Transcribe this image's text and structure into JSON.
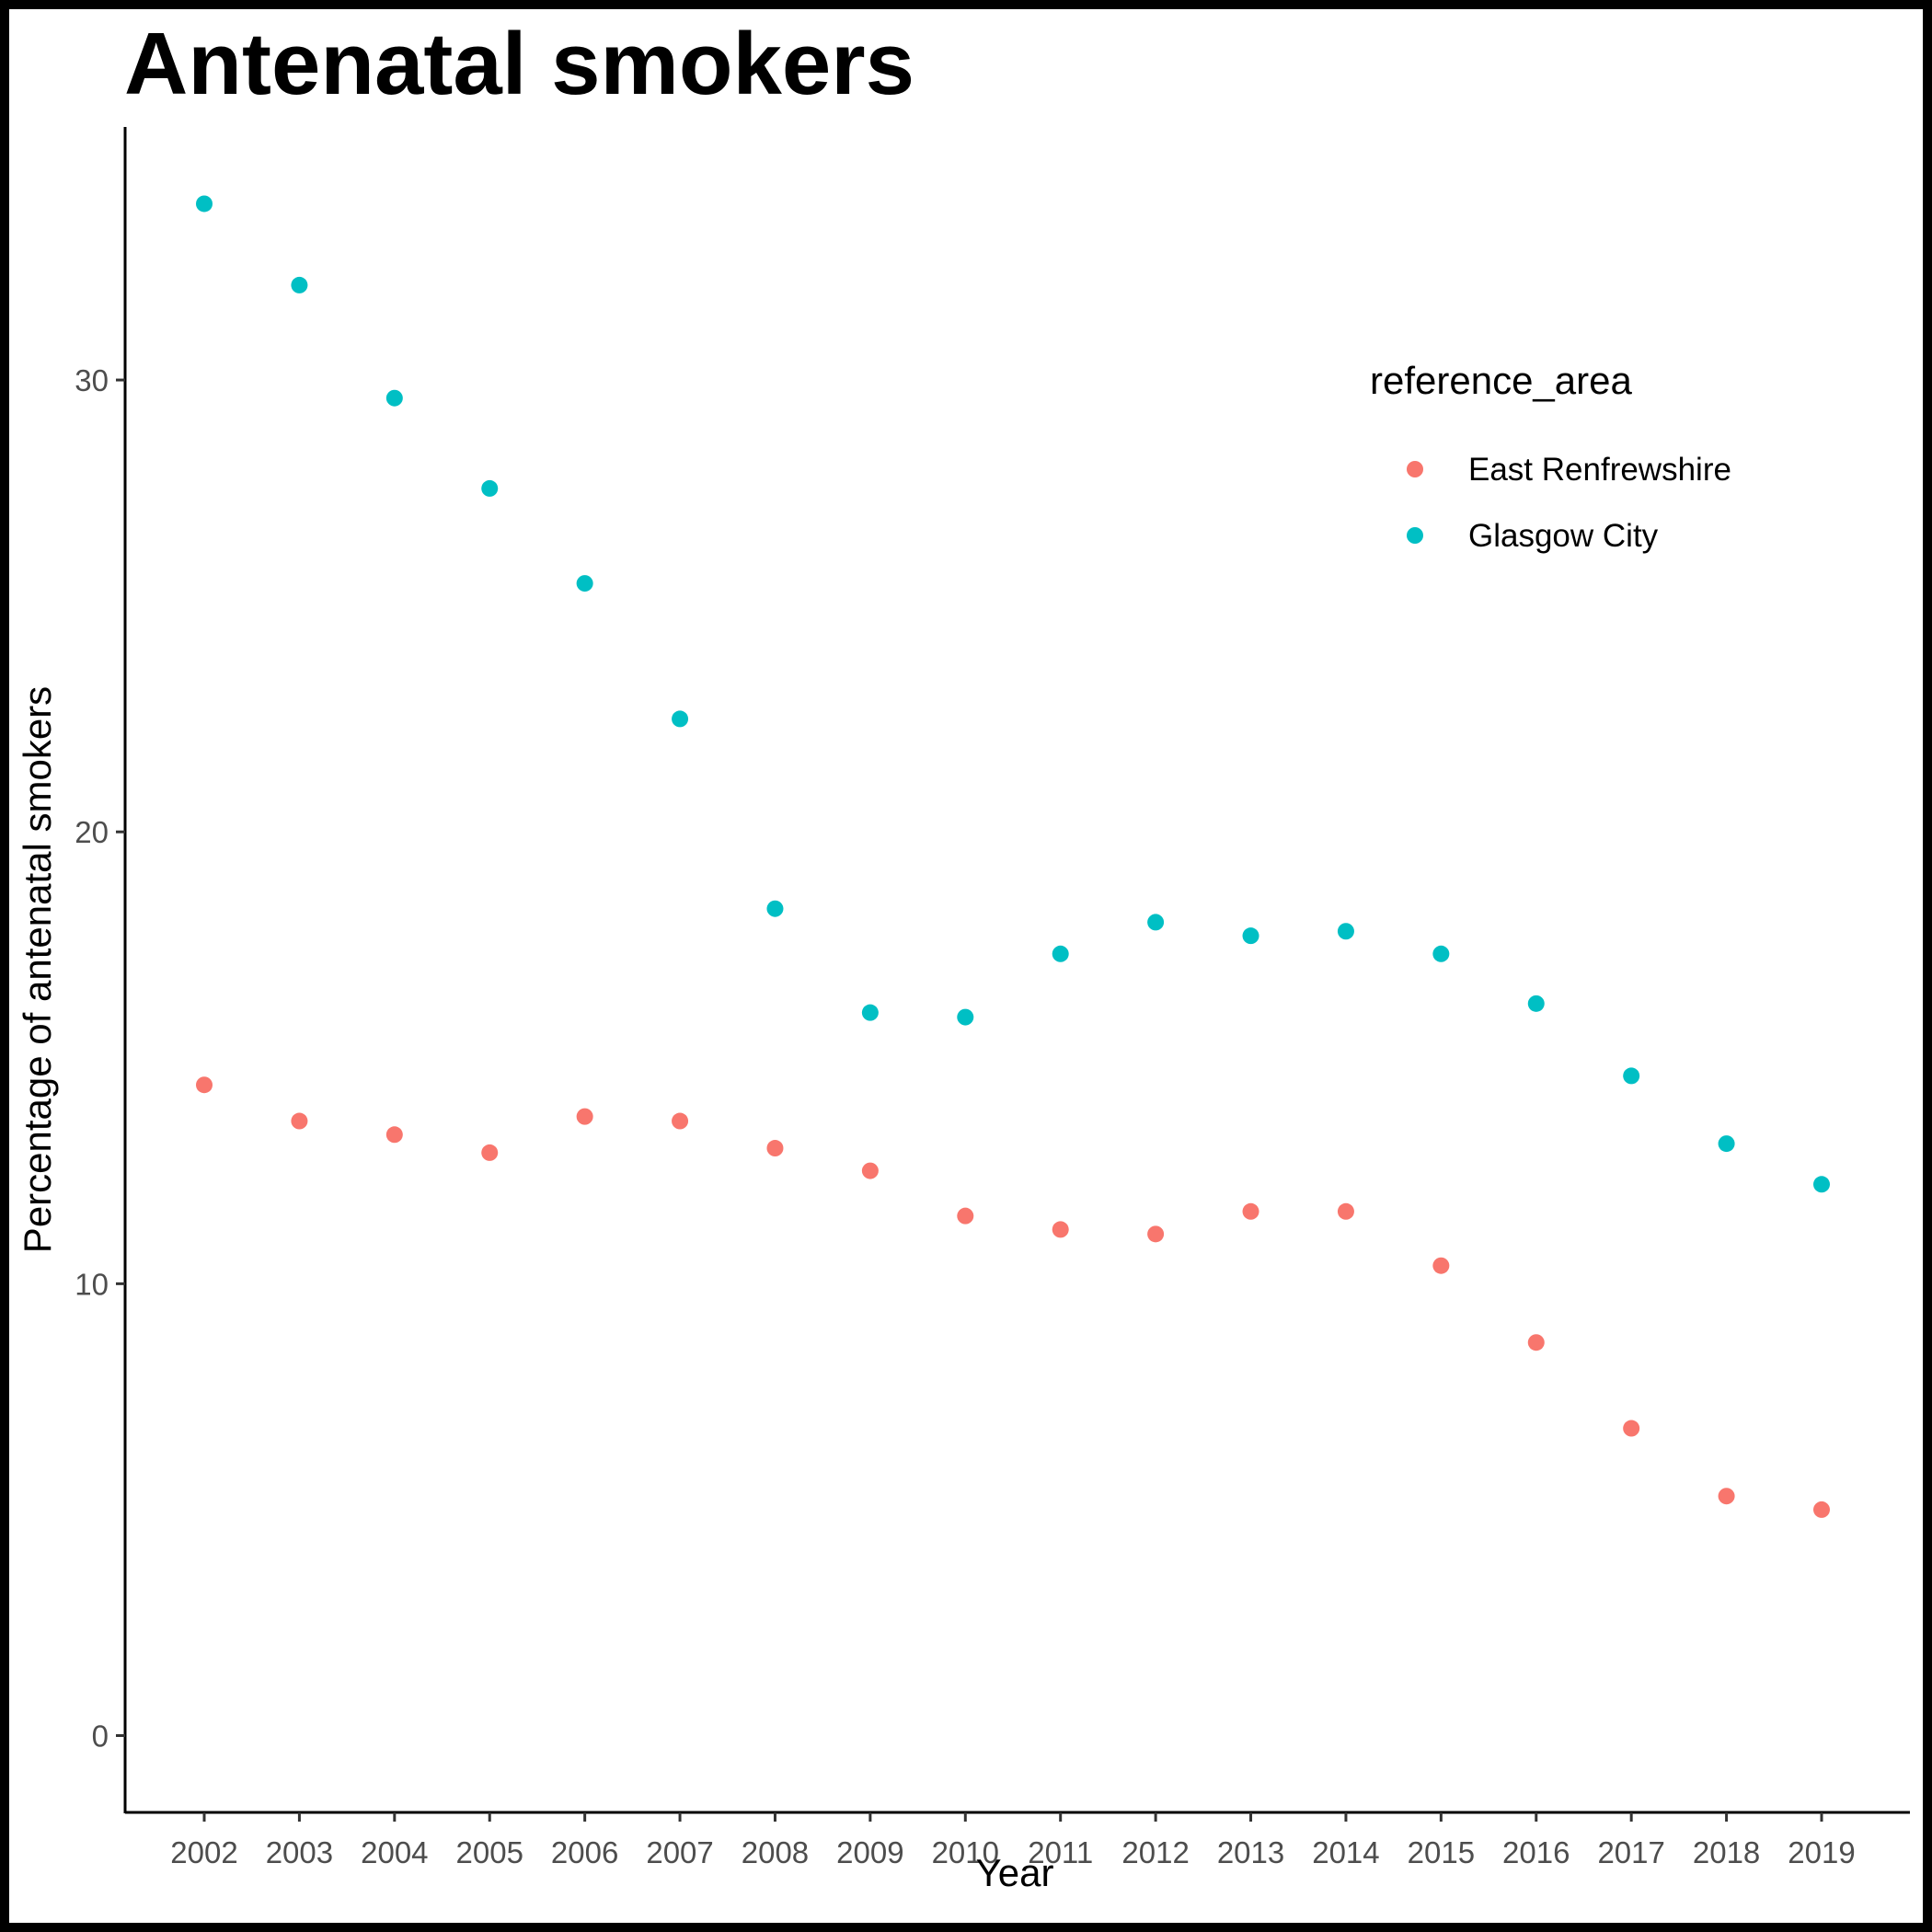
{
  "chart_data": {
    "type": "scatter",
    "title": "Antenatal smokers",
    "xlabel": "Year",
    "ylabel": "Percentage of antenatal smokers",
    "x": [
      2002,
      2003,
      2004,
      2005,
      2006,
      2007,
      2008,
      2009,
      2010,
      2011,
      2012,
      2013,
      2014,
      2015,
      2016,
      2017,
      2018,
      2019
    ],
    "x_tick_labels": [
      "2002",
      "2003",
      "2004",
      "2005",
      "2006",
      "2007",
      "2008",
      "2009",
      "2010",
      "2011",
      "2012",
      "2013",
      "2014",
      "2015",
      "2016",
      "2017",
      "2018",
      "2019"
    ],
    "y_ticks": [
      0,
      10,
      20,
      30
    ],
    "y_tick_labels": [
      "0",
      "10",
      "20",
      "30"
    ],
    "ylim": [
      -1.7,
      35.6
    ],
    "grid": false,
    "legend": {
      "title": "reference_area",
      "placement": "top-right"
    },
    "series": [
      {
        "name": "East Renfrewshire",
        "color": "#F8766D",
        "values": [
          14.4,
          13.6,
          13.3,
          12.9,
          13.7,
          13.6,
          13.0,
          12.5,
          11.5,
          11.2,
          11.1,
          11.6,
          11.6,
          10.4,
          8.7,
          6.8,
          5.3,
          5.0
        ]
      },
      {
        "name": "Glasgow City",
        "color": "#00BFC4",
        "values": [
          33.9,
          32.1,
          29.6,
          27.6,
          25.5,
          22.5,
          18.3,
          16.0,
          15.9,
          17.3,
          18.0,
          17.7,
          17.8,
          17.3,
          16.2,
          14.6,
          13.1,
          12.2
        ]
      }
    ]
  }
}
